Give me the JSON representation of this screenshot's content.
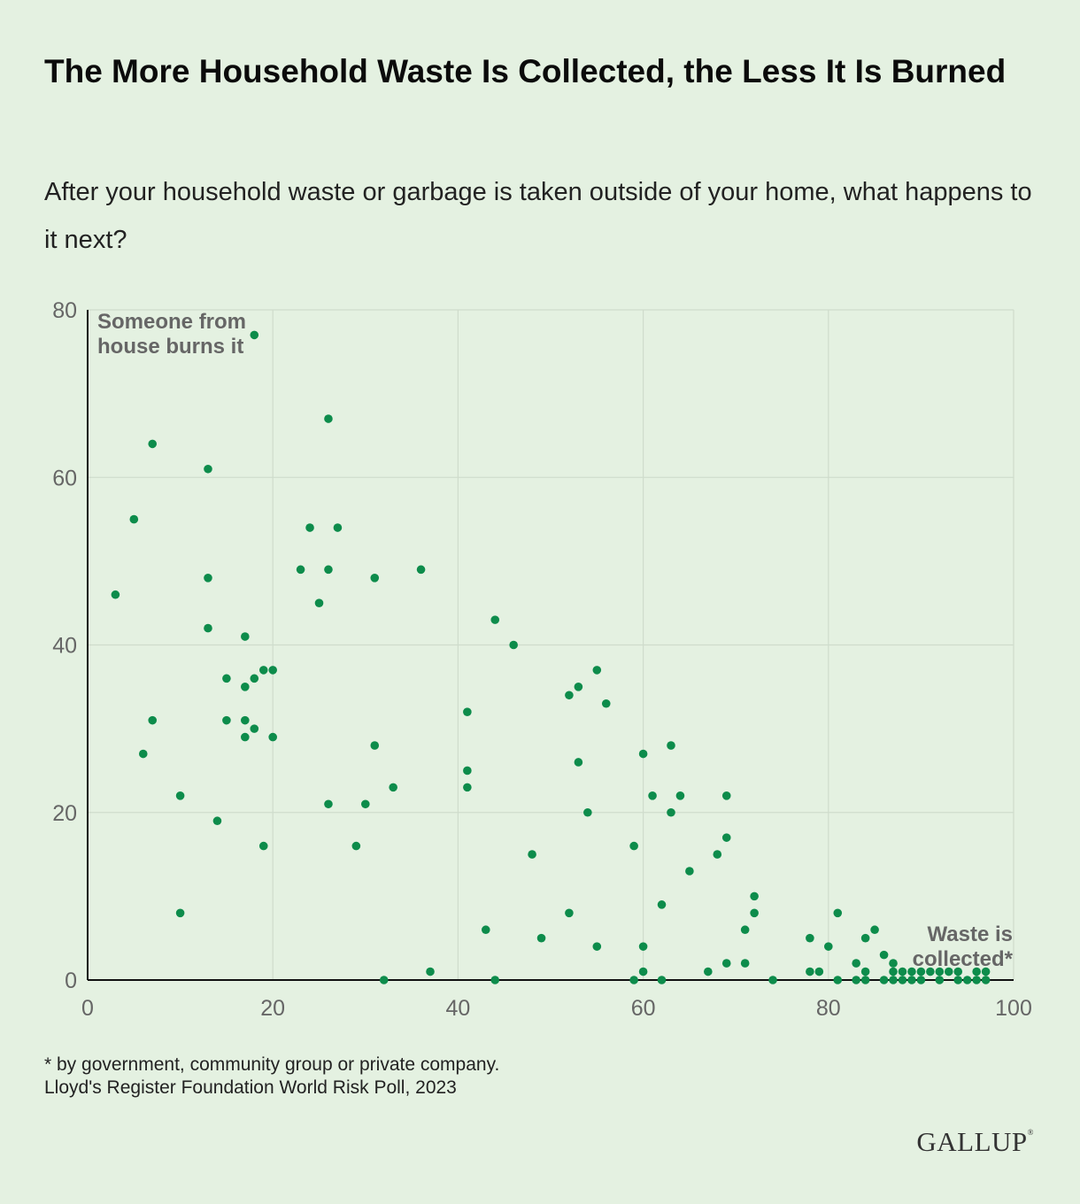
{
  "title": "The More Household Waste Is Collected, the Less It Is Burned",
  "subtitle": "After your household waste or garbage is taken outside of your home, what happens to it next?",
  "footnote": {
    "line1": "* by government, community group or private company.",
    "line2": "Lloyd's Register Foundation World Risk Poll, 2023"
  },
  "logo": {
    "text": "GALLUP",
    "mark": "®"
  },
  "colors": {
    "background": "#e4f1e1",
    "point": "#0d8c4b",
    "grid": "#cfdccc",
    "axis": "#111111",
    "annotation": "#666666"
  },
  "chart_data": {
    "type": "scatter",
    "xlim": [
      0,
      100
    ],
    "ylim": [
      0,
      80
    ],
    "xticks": [
      "0",
      "20",
      "40",
      "60",
      "80",
      "100"
    ],
    "yticks": [
      "0",
      "20",
      "40",
      "60",
      "80"
    ],
    "grid": true,
    "annotations": {
      "y_axis_label": [
        "Someone from",
        "house burns it"
      ],
      "x_axis_label": [
        "Waste is",
        "collected*"
      ]
    },
    "points": [
      [
        3,
        46
      ],
      [
        5,
        55
      ],
      [
        6,
        27
      ],
      [
        7,
        64
      ],
      [
        7,
        31
      ],
      [
        10,
        22
      ],
      [
        10,
        8
      ],
      [
        13,
        61
      ],
      [
        13,
        48
      ],
      [
        13,
        42
      ],
      [
        14,
        19
      ],
      [
        15,
        36
      ],
      [
        15,
        31
      ],
      [
        17,
        41
      ],
      [
        17,
        35
      ],
      [
        17,
        31
      ],
      [
        17,
        29
      ],
      [
        18,
        36
      ],
      [
        18,
        30
      ],
      [
        18,
        77
      ],
      [
        19,
        37
      ],
      [
        19,
        16
      ],
      [
        20,
        37
      ],
      [
        20,
        29
      ],
      [
        23,
        49
      ],
      [
        24,
        54
      ],
      [
        25,
        45
      ],
      [
        26,
        67
      ],
      [
        26,
        49
      ],
      [
        26,
        21
      ],
      [
        27,
        54
      ],
      [
        29,
        16
      ],
      [
        30,
        21
      ],
      [
        31,
        48
      ],
      [
        31,
        28
      ],
      [
        32,
        0
      ],
      [
        33,
        23
      ],
      [
        36,
        49
      ],
      [
        37,
        1
      ],
      [
        41,
        32
      ],
      [
        41,
        25
      ],
      [
        41,
        23
      ],
      [
        43,
        6
      ],
      [
        44,
        43
      ],
      [
        44,
        0
      ],
      [
        46,
        40
      ],
      [
        48,
        15
      ],
      [
        49,
        5
      ],
      [
        52,
        34
      ],
      [
        52,
        8
      ],
      [
        53,
        35
      ],
      [
        53,
        26
      ],
      [
        54,
        20
      ],
      [
        55,
        37
      ],
      [
        55,
        4
      ],
      [
        56,
        33
      ],
      [
        59,
        16
      ],
      [
        59,
        0
      ],
      [
        60,
        27
      ],
      [
        60,
        4
      ],
      [
        60,
        1
      ],
      [
        61,
        22
      ],
      [
        62,
        9
      ],
      [
        62,
        0
      ],
      [
        63,
        28
      ],
      [
        63,
        20
      ],
      [
        64,
        22
      ],
      [
        65,
        13
      ],
      [
        67,
        1
      ],
      [
        68,
        15
      ],
      [
        69,
        22
      ],
      [
        69,
        17
      ],
      [
        69,
        2
      ],
      [
        71,
        6
      ],
      [
        71,
        2
      ],
      [
        72,
        10
      ],
      [
        72,
        8
      ],
      [
        74,
        0
      ],
      [
        78,
        5
      ],
      [
        78,
        1
      ],
      [
        79,
        1
      ],
      [
        80,
        4
      ],
      [
        81,
        8
      ],
      [
        81,
        0
      ],
      [
        83,
        2
      ],
      [
        83,
        0
      ],
      [
        84,
        5
      ],
      [
        84,
        1
      ],
      [
        84,
        0
      ],
      [
        85,
        6
      ],
      [
        86,
        3
      ],
      [
        86,
        0
      ],
      [
        87,
        2
      ],
      [
        87,
        1
      ],
      [
        87,
        0
      ],
      [
        88,
        1
      ],
      [
        88,
        0
      ],
      [
        89,
        1
      ],
      [
        89,
        0
      ],
      [
        90,
        1
      ],
      [
        90,
        0
      ],
      [
        91,
        1
      ],
      [
        92,
        1
      ],
      [
        92,
        0
      ],
      [
        93,
        1
      ],
      [
        94,
        1
      ],
      [
        94,
        0
      ],
      [
        95,
        0
      ],
      [
        96,
        1
      ],
      [
        96,
        0
      ],
      [
        97,
        1
      ],
      [
        97,
        0
      ]
    ]
  }
}
